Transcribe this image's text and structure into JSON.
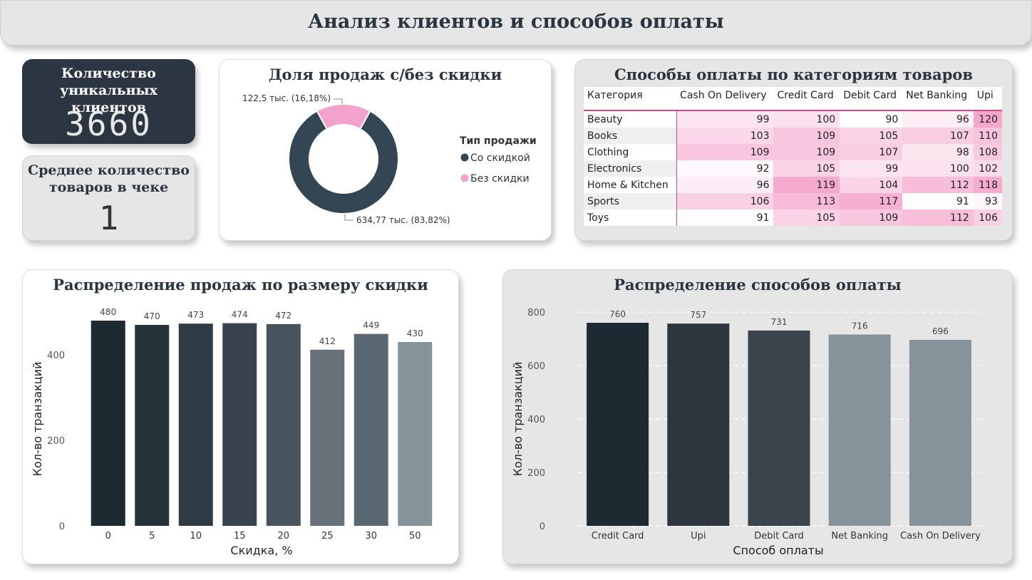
{
  "header": {
    "title": "Анализ клиентов и способов оплаты"
  },
  "kpis": [
    {
      "title_line1": "Количество",
      "title_line2": "уникальных клиентов",
      "value": "3660"
    },
    {
      "title_line1": "Среднее количество",
      "title_line2": "товаров в чеке",
      "value": "1"
    }
  ],
  "donut": {
    "title": "Доля продаж с/без скидки",
    "legend_title": "Тип продажи",
    "colors": {
      "with": "#344654",
      "without": "#f2a2cb"
    }
  },
  "table": {
    "title": "Способы оплаты по категориям товаров",
    "columns": [
      "Категория",
      "Cash On Delivery",
      "Credit Card",
      "Debit Card",
      "Net Banking",
      "Upi"
    ],
    "rows": [
      {
        "category": "Beauty",
        "values": [
          99,
          100,
          90,
          96,
          120
        ]
      },
      {
        "category": "Books",
        "values": [
          103,
          109,
          105,
          107,
          110
        ]
      },
      {
        "category": "Clothing",
        "values": [
          109,
          109,
          107,
          98,
          108
        ]
      },
      {
        "category": "Electronics",
        "values": [
          92,
          105,
          99,
          100,
          102
        ]
      },
      {
        "category": "Home & Kitchen",
        "values": [
          96,
          119,
          104,
          112,
          118
        ]
      },
      {
        "category": "Sports",
        "values": [
          106,
          113,
          117,
          91,
          93
        ]
      },
      {
        "category": "Toys",
        "values": [
          91,
          105,
          109,
          112,
          106
        ]
      }
    ],
    "heat_min": 90,
    "heat_max": 120,
    "heat_color_low": "#ffffff",
    "heat_color_high": "#f4a6cc"
  },
  "chart_data": [
    {
      "type": "pie",
      "title": "Доля продаж с/без скидки",
      "legend_title": "Тип продажи",
      "legend_position": "right",
      "slices": [
        {
          "name": "Со скидкой",
          "value": 634770,
          "label": "634,77 тыс. (83,82%)",
          "color": "#344654"
        },
        {
          "name": "Без скидки",
          "value": 122500,
          "label": "122,5 тыс. (16,18%)",
          "color": "#f2a2cb"
        }
      ]
    },
    {
      "type": "bar",
      "title": "Распределение продаж по размеру скидки",
      "xlabel": "Скидка, %",
      "ylabel": "Кол-во транзакций",
      "categories": [
        "0",
        "5",
        "10",
        "15",
        "20",
        "25",
        "30",
        "50"
      ],
      "values": [
        480,
        470,
        473,
        474,
        472,
        412,
        449,
        430
      ],
      "colors": [
        "#1e2a31",
        "#263239",
        "#2f3b45",
        "#38434d",
        "#47545e",
        "#67727b",
        "#5b6770",
        "#87939b"
      ],
      "ylim": [
        0,
        500
      ],
      "yticks": [
        0,
        200,
        400
      ],
      "grid": false
    },
    {
      "type": "bar",
      "title": "Распределение способов оплаты",
      "xlabel": "Способ оплаты",
      "ylabel": "Кол-во транзакций",
      "categories": [
        "Credit Card",
        "Upi",
        "Debit Card",
        "Net Banking",
        "Cash On Delivery"
      ],
      "values": [
        760,
        757,
        731,
        716,
        696
      ],
      "colors": [
        "#1e2a31",
        "#2d363f",
        "#3b444c",
        "#87939b",
        "#87939b"
      ],
      "ylim": [
        0,
        800
      ],
      "yticks": [
        0,
        200,
        400,
        600,
        800
      ],
      "grid": true
    }
  ]
}
